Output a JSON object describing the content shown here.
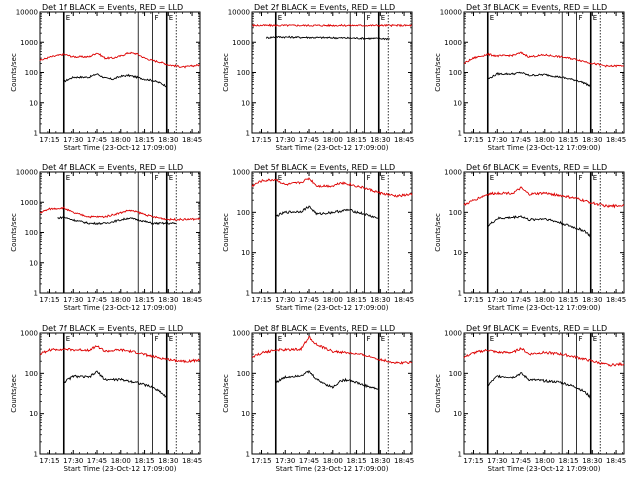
{
  "figure": {
    "x_ticks": [
      "17:15",
      "17:30",
      "17:45",
      "18:00",
      "18:15",
      "18:30",
      "18:45"
    ],
    "y_ticks": [
      "1",
      "10",
      "100",
      "1000",
      "10000"
    ],
    "flag_labels": [
      "E",
      "F",
      "E"
    ],
    "colors": {
      "events": "#000000",
      "lld": "#dd0000",
      "axes": "#000000"
    }
  },
  "chart_data": [
    {
      "type": "line",
      "title": "Det 1f BLACK = Events, RED = LLD",
      "xlabel": "Start Time (23-Oct-12 17:09:00)",
      "ylabel": "Counts/sec",
      "ylog": true,
      "ylim": [
        1,
        10000
      ],
      "x_range": [
        "17:09",
        "18:50"
      ],
      "series": [
        {
          "name": "Events",
          "x": [
            "17:24",
            "17:30",
            "17:40",
            "17:45",
            "17:50",
            "17:55",
            "18:00",
            "18:05",
            "18:10",
            "18:15",
            "18:20",
            "18:25",
            "18:29"
          ],
          "values": [
            50,
            70,
            70,
            90,
            65,
            60,
            75,
            80,
            70,
            60,
            55,
            45,
            35
          ]
        },
        {
          "name": "LLD",
          "x": [
            "17:09",
            "17:15",
            "17:24",
            "17:30",
            "17:40",
            "17:45",
            "17:50",
            "17:55",
            "18:00",
            "18:05",
            "18:10",
            "18:15",
            "18:20",
            "18:25",
            "18:30",
            "18:40",
            "18:50"
          ],
          "values": [
            250,
            320,
            400,
            330,
            330,
            450,
            300,
            300,
            350,
            450,
            420,
            300,
            250,
            220,
            180,
            150,
            180
          ]
        }
      ],
      "vlines": [
        "17:24",
        "18:11",
        "18:20",
        "18:29",
        "18:35"
      ]
    },
    {
      "type": "line",
      "title": "Det 2f BLACK = Events, RED = LLD",
      "xlabel": "Start Time (23-Oct-12 17:09:00)",
      "ylabel": "Counts/sec",
      "ylog": true,
      "ylim": [
        1,
        10000
      ],
      "x_range": [
        "17:09",
        "18:50"
      ],
      "series": [
        {
          "name": "Events",
          "x": [
            "17:18",
            "17:24",
            "17:40",
            "18:00",
            "18:20",
            "18:36"
          ],
          "values": [
            1400,
            1500,
            1450,
            1400,
            1350,
            1300
          ]
        },
        {
          "name": "LLD",
          "x": [
            "17:09",
            "17:30",
            "18:00",
            "18:30",
            "18:50"
          ],
          "values": [
            3600,
            3600,
            3600,
            3600,
            3600
          ]
        }
      ],
      "vlines": [
        "17:24",
        "18:11",
        "18:20",
        "18:29",
        "18:35"
      ]
    },
    {
      "type": "line",
      "title": "Det 3f BLACK = Events, RED = LLD",
      "xlabel": "Start Time (23-Oct-12 17:09:00)",
      "ylabel": "Counts/sec",
      "ylog": true,
      "ylim": [
        1,
        10000
      ],
      "x_range": [
        "17:09",
        "18:50"
      ],
      "series": [
        {
          "name": "Events",
          "x": [
            "17:24",
            "17:30",
            "17:40",
            "17:45",
            "17:50",
            "18:00",
            "18:10",
            "18:20",
            "18:25",
            "18:29"
          ],
          "values": [
            60,
            90,
            90,
            100,
            80,
            85,
            70,
            55,
            45,
            35
          ]
        },
        {
          "name": "LLD",
          "x": [
            "17:09",
            "17:15",
            "17:24",
            "17:30",
            "17:40",
            "17:45",
            "17:50",
            "18:00",
            "18:10",
            "18:20",
            "18:30",
            "18:40",
            "18:50"
          ],
          "values": [
            200,
            300,
            400,
            350,
            370,
            450,
            330,
            380,
            330,
            270,
            200,
            160,
            170
          ]
        }
      ],
      "vlines": [
        "17:24",
        "18:11",
        "18:20",
        "18:29",
        "18:35"
      ]
    },
    {
      "type": "line",
      "title": "Det 4f BLACK = Events, RED = LLD",
      "xlabel": "Start Time (23-Oct-12 17:09:00)",
      "ylabel": "Counts/sec",
      "ylog": true,
      "ylim": [
        1,
        10000
      ],
      "x_range": [
        "17:09",
        "18:50"
      ],
      "series": [
        {
          "name": "Events",
          "x": [
            "17:20",
            "17:24",
            "17:30",
            "17:40",
            "17:50",
            "18:00",
            "18:05",
            "18:10",
            "18:20",
            "18:30",
            "18:35"
          ],
          "values": [
            300,
            320,
            260,
            200,
            200,
            260,
            300,
            270,
            200,
            200,
            200
          ]
        },
        {
          "name": "LLD",
          "x": [
            "17:09",
            "17:15",
            "17:24",
            "17:30",
            "17:40",
            "17:50",
            "18:00",
            "18:05",
            "18:10",
            "18:20",
            "18:30",
            "18:40",
            "18:50"
          ],
          "values": [
            450,
            600,
            650,
            450,
            330,
            330,
            450,
            540,
            480,
            330,
            270,
            270,
            280
          ]
        }
      ],
      "vlines": [
        "17:24",
        "18:11",
        "18:20",
        "18:29",
        "18:35"
      ]
    },
    {
      "type": "line",
      "title": "Det 5f BLACK = Events, RED = LLD",
      "xlabel": "Start Time (23-Oct-12 17:09:00)",
      "ylabel": "Counts/sec",
      "ylog": true,
      "ylim": [
        1,
        1000
      ],
      "x_range": [
        "17:09",
        "18:50"
      ],
      "series": [
        {
          "name": "Events",
          "x": [
            "17:24",
            "17:30",
            "17:40",
            "17:45",
            "17:50",
            "18:00",
            "18:10",
            "18:20",
            "18:29"
          ],
          "values": [
            80,
            100,
            105,
            140,
            90,
            100,
            115,
            90,
            70
          ]
        },
        {
          "name": "LLD",
          "x": [
            "17:09",
            "17:15",
            "17:24",
            "17:30",
            "17:40",
            "17:45",
            "17:50",
            "18:00",
            "18:05",
            "18:10",
            "18:20",
            "18:30",
            "18:40",
            "18:50"
          ],
          "values": [
            450,
            600,
            650,
            480,
            550,
            700,
            450,
            450,
            550,
            500,
            400,
            300,
            250,
            280
          ]
        }
      ],
      "vlines": [
        "17:24",
        "18:11",
        "18:20",
        "18:29",
        "18:35"
      ]
    },
    {
      "type": "line",
      "title": "Det 6f BLACK = Events, RED = LLD",
      "xlabel": "Start Time (23-Oct-12 17:09:00)",
      "ylabel": "Counts/sec",
      "ylog": true,
      "ylim": [
        1,
        1000
      ],
      "x_range": [
        "17:09",
        "18:50"
      ],
      "series": [
        {
          "name": "Events",
          "x": [
            "17:24",
            "17:30",
            "17:40",
            "17:45",
            "17:50",
            "18:00",
            "18:10",
            "18:20",
            "18:25",
            "18:29"
          ],
          "values": [
            45,
            70,
            75,
            80,
            65,
            70,
            55,
            40,
            35,
            25
          ]
        },
        {
          "name": "LLD",
          "x": [
            "17:09",
            "17:15",
            "17:24",
            "17:30",
            "17:40",
            "17:45",
            "17:50",
            "18:00",
            "18:10",
            "18:20",
            "18:30",
            "18:40",
            "18:50"
          ],
          "values": [
            150,
            200,
            280,
            300,
            300,
            400,
            280,
            300,
            260,
            220,
            170,
            140,
            150
          ]
        }
      ],
      "vlines": [
        "17:24",
        "18:11",
        "18:20",
        "18:29",
        "18:35"
      ]
    },
    {
      "type": "line",
      "title": "Det 7f BLACK = Events, RED = LLD",
      "xlabel": "Start Time (23-Oct-12 17:09:00)",
      "ylabel": "Counts/sec",
      "ylog": true,
      "ylim": [
        1,
        1000
      ],
      "x_range": [
        "17:09",
        "18:50"
      ],
      "series": [
        {
          "name": "Events",
          "x": [
            "17:24",
            "17:30",
            "17:40",
            "17:45",
            "17:50",
            "18:00",
            "18:10",
            "18:20",
            "18:25",
            "18:29"
          ],
          "values": [
            60,
            85,
            80,
            110,
            70,
            70,
            60,
            45,
            35,
            25
          ]
        },
        {
          "name": "LLD",
          "x": [
            "17:09",
            "17:15",
            "17:24",
            "17:30",
            "17:40",
            "17:45",
            "17:50",
            "18:00",
            "18:10",
            "18:20",
            "18:30",
            "18:40",
            "18:50"
          ],
          "values": [
            300,
            380,
            400,
            380,
            380,
            480,
            350,
            380,
            330,
            260,
            220,
            200,
            210
          ]
        }
      ],
      "vlines": [
        "17:24",
        "18:11",
        "18:20",
        "18:29",
        "18:35"
      ]
    },
    {
      "type": "line",
      "title": "Det 8f BLACK = Events, RED = LLD",
      "xlabel": "Start Time (23-Oct-12 17:09:00)",
      "ylabel": "Counts/sec",
      "ylog": true,
      "ylim": [
        1,
        1000
      ],
      "x_range": [
        "17:09",
        "18:50"
      ],
      "series": [
        {
          "name": "Events",
          "x": [
            "17:24",
            "17:30",
            "17:40",
            "17:45",
            "17:50",
            "17:55",
            "18:00",
            "18:05",
            "18:10",
            "18:20",
            "18:29"
          ],
          "values": [
            60,
            80,
            90,
            110,
            70,
            55,
            45,
            65,
            70,
            50,
            40
          ]
        },
        {
          "name": "LLD",
          "x": [
            "17:09",
            "17:15",
            "17:24",
            "17:30",
            "17:40",
            "17:45",
            "17:50",
            "18:00",
            "18:10",
            "18:20",
            "18:30",
            "18:40",
            "18:50"
          ],
          "values": [
            250,
            320,
            380,
            380,
            400,
            800,
            500,
            350,
            320,
            280,
            220,
            180,
            190
          ]
        }
      ],
      "vlines": [
        "17:24",
        "18:11",
        "18:20",
        "18:29",
        "18:35"
      ]
    },
    {
      "type": "line",
      "title": "Det 9f BLACK = Events, RED = LLD",
      "xlabel": "Start Time (23-Oct-12 17:09:00)",
      "ylabel": "Counts/sec",
      "ylog": true,
      "ylim": [
        1,
        1000
      ],
      "x_range": [
        "17:09",
        "18:50"
      ],
      "series": [
        {
          "name": "Events",
          "x": [
            "17:24",
            "17:30",
            "17:40",
            "17:45",
            "17:50",
            "18:00",
            "18:10",
            "18:20",
            "18:25",
            "18:29"
          ],
          "values": [
            50,
            85,
            80,
            100,
            70,
            65,
            60,
            45,
            35,
            25
          ]
        },
        {
          "name": "LLD",
          "x": [
            "17:09",
            "17:15",
            "17:24",
            "17:30",
            "17:40",
            "17:45",
            "17:50",
            "18:00",
            "18:10",
            "18:20",
            "18:30",
            "18:40",
            "18:50"
          ],
          "values": [
            250,
            320,
            380,
            330,
            330,
            420,
            300,
            330,
            300,
            250,
            200,
            160,
            170
          ]
        }
      ],
      "vlines": [
        "17:24",
        "18:11",
        "18:20",
        "18:29",
        "18:35"
      ]
    }
  ]
}
